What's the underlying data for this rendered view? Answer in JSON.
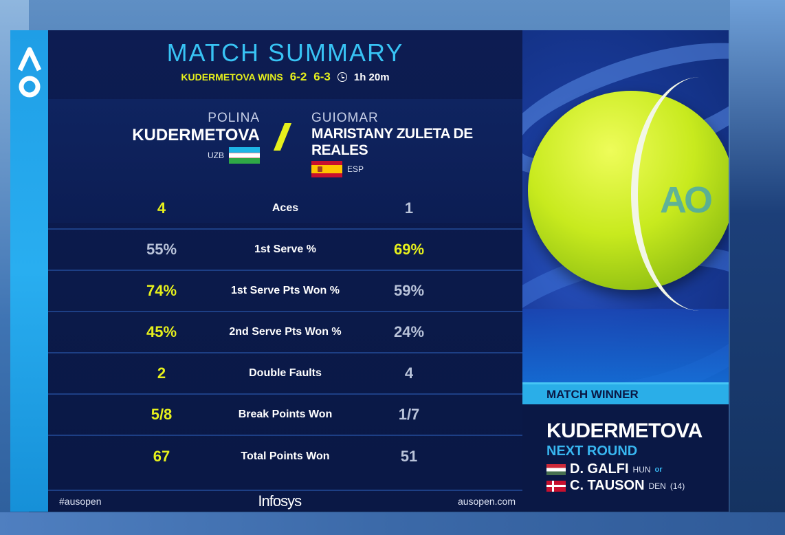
{
  "brand": {
    "logo_text": "AO"
  },
  "header": {
    "title": "MATCH SUMMARY",
    "winner_text": "KUDERMETOVA WINS",
    "set1": "6-2",
    "set2": "6-3",
    "duration": "1h 20m"
  },
  "players": {
    "p1": {
      "first": "POLINA",
      "last": "KUDERMETOVA",
      "country": "UZB"
    },
    "p2": {
      "first": "GUIOMAR",
      "last": "MARISTANY ZULETA DE REALES",
      "country": "ESP"
    }
  },
  "stats": [
    {
      "label": "Aces",
      "p1": "4",
      "p2": "1",
      "leader": "p1"
    },
    {
      "label": "1st Serve %",
      "p1": "55%",
      "p2": "69%",
      "leader": "p2"
    },
    {
      "label": "1st Serve Pts Won %",
      "p1": "74%",
      "p2": "59%",
      "leader": "p1"
    },
    {
      "label": "2nd Serve Pts Won %",
      "p1": "45%",
      "p2": "24%",
      "leader": "p1"
    },
    {
      "label": "Double Faults",
      "p1": "2",
      "p2": "4",
      "leader": "p1"
    },
    {
      "label": "Break Points Won",
      "p1": "5/8",
      "p2": "1/7",
      "leader": "p1"
    },
    {
      "label": "Total Points Won",
      "p1": "67",
      "p2": "51",
      "leader": "p1"
    }
  ],
  "footer": {
    "hashtag": "#ausopen",
    "sponsor": "Infosys",
    "website": "ausopen.com"
  },
  "winner_panel": {
    "ball_mark": "AO",
    "match_winner_label": "MATCH WINNER",
    "winner_name": "KUDERMETOVA",
    "next_round_label": "NEXT ROUND",
    "opponent1": {
      "name": "D. GALFI",
      "country": "HUN",
      "connector": "or"
    },
    "opponent2": {
      "name": "C. TAUSON",
      "country": "DEN",
      "seed": "(14)"
    }
  },
  "colors": {
    "accent_yellow": "#e6f01c",
    "accent_cyan": "#38c3f4",
    "panel_navy": "#0b1a4a"
  }
}
